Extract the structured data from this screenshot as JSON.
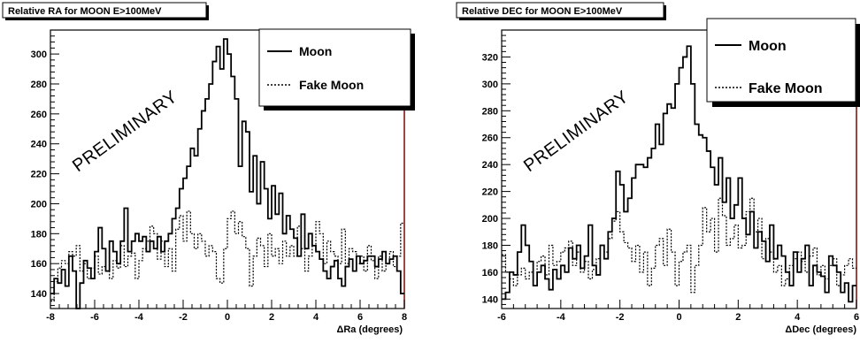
{
  "colors": {
    "background": "#ffffff",
    "axes": "#000000",
    "frame_right": "#8b1a1a",
    "series": "#000000"
  },
  "chart_data": [
    {
      "type": "line",
      "title": "Relative RA for MOON E>100MeV",
      "xlabel": "ΔRa (degrees)",
      "ylabel": "",
      "xlim": [
        -8,
        8
      ],
      "ylim": [
        130,
        316
      ],
      "xticks": [
        -8,
        -6,
        -4,
        -2,
        0,
        2,
        4,
        6,
        8
      ],
      "yticks": [
        140,
        160,
        180,
        200,
        220,
        240,
        260,
        280,
        300
      ],
      "annotation": "PRELIMINARY",
      "legend": {
        "placement": "top-right",
        "entries": [
          "Moon",
          "Fake Moon"
        ]
      },
      "series": [
        {
          "name": "Moon",
          "style": "solid",
          "values": [
            140,
            150,
            147,
            156,
            145,
            165,
            155,
            130,
            147,
            162,
            157,
            150,
            168,
            184,
            170,
            155,
            175,
            168,
            160,
            175,
            197,
            168,
            175,
            180,
            175,
            178,
            168,
            175,
            170,
            178,
            168,
            175,
            180,
            190,
            197,
            210,
            217,
            225,
            237,
            232,
            250,
            262,
            270,
            280,
            295,
            305,
            290,
            310,
            300,
            285,
            270,
            225,
            255,
            248,
            208,
            232,
            200,
            228,
            210,
            190,
            212,
            193,
            207,
            180,
            192,
            183,
            177,
            165,
            193,
            170,
            180,
            172,
            168,
            163,
            155,
            150,
            158,
            162,
            150,
            145,
            158,
            163,
            155,
            165,
            160,
            162,
            165,
            165,
            158,
            163,
            168,
            160,
            163,
            165,
            155,
            140
          ]
        },
        {
          "name": "Fake Moon",
          "style": "dotted",
          "values": [
            135,
            148,
            157,
            162,
            160,
            168,
            165,
            172,
            155,
            160,
            150,
            157,
            165,
            153,
            158,
            155,
            150,
            162,
            157,
            172,
            158,
            165,
            167,
            150,
            162,
            170,
            175,
            185,
            180,
            163,
            175,
            158,
            170,
            155,
            183,
            192,
            175,
            195,
            180,
            170,
            180,
            175,
            165,
            172,
            168,
            150,
            147,
            170,
            190,
            195,
            180,
            188,
            178,
            170,
            145,
            165,
            177,
            172,
            158,
            180,
            165,
            170,
            160,
            175,
            165,
            172,
            165,
            185,
            170,
            155,
            165,
            172,
            188,
            180,
            160,
            175,
            168,
            165,
            160,
            183,
            160,
            170,
            168,
            160,
            165,
            155,
            172,
            162,
            150,
            165,
            155,
            160,
            168,
            158,
            165,
            187
          ]
        }
      ]
    },
    {
      "type": "line",
      "title": "Relative DEC for MOON E>100MeV",
      "xlabel": "ΔDec (degrees)",
      "ylabel": "",
      "xlim": [
        -6,
        6
      ],
      "ylim": [
        133,
        340
      ],
      "xticks": [
        -6,
        -4,
        -2,
        0,
        2,
        4,
        6
      ],
      "yticks": [
        140,
        160,
        180,
        200,
        220,
        240,
        260,
        280,
        300,
        320
      ],
      "annotation": "PRELIMINARY",
      "legend": {
        "placement": "top-right",
        "entries": [
          "Moon",
          "Fake Moon"
        ]
      },
      "series": [
        {
          "name": "Moon",
          "style": "solid",
          "values": [
            140,
            145,
            160,
            158,
            175,
            195,
            180,
            168,
            150,
            160,
            165,
            155,
            147,
            162,
            155,
            165,
            160,
            178,
            170,
            180,
            163,
            172,
            195,
            165,
            158,
            180,
            170,
            190,
            200,
            235,
            225,
            205,
            215,
            230,
            240,
            240,
            238,
            245,
            252,
            270,
            255,
            278,
            285,
            282,
            300,
            312,
            320,
            328,
            300,
            270,
            262,
            260,
            250,
            238,
            225,
            245,
            212,
            230,
            200,
            210,
            230,
            200,
            188,
            205,
            178,
            190,
            183,
            168,
            195,
            170,
            180,
            172,
            160,
            150,
            175,
            160,
            170,
            180,
            150,
            165,
            160,
            157,
            145,
            172,
            165,
            160,
            145,
            152,
            138,
            150
          ]
        },
        {
          "name": "Fake Moon",
          "style": "dotted",
          "values": [
            173,
            160,
            155,
            150,
            158,
            163,
            155,
            160,
            150,
            168,
            172,
            158,
            180,
            165,
            168,
            175,
            178,
            183,
            165,
            175,
            160,
            168,
            155,
            162,
            170,
            180,
            175,
            185,
            198,
            205,
            190,
            182,
            178,
            168,
            180,
            160,
            175,
            150,
            163,
            180,
            185,
            165,
            192,
            175,
            150,
            168,
            175,
            180,
            145,
            165,
            180,
            208,
            190,
            200,
            175,
            215,
            202,
            180,
            185,
            195,
            178,
            180,
            205,
            215,
            190,
            200,
            170,
            185,
            175,
            160,
            165,
            150,
            155,
            165,
            170,
            175,
            168,
            160,
            172,
            178,
            158,
            165,
            155,
            165,
            170,
            150,
            158,
            165,
            170,
            163
          ]
        }
      ]
    }
  ]
}
